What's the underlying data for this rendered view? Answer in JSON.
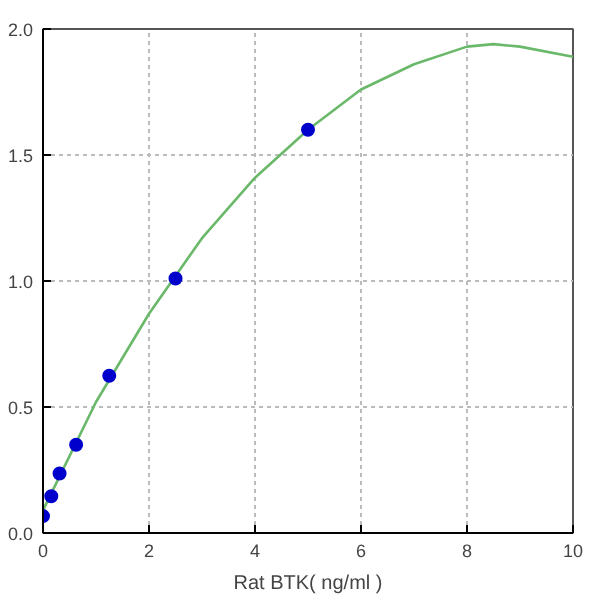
{
  "chart_data": {
    "type": "scatter",
    "xlabel": "Rat BTK( ng/ml )",
    "xlim": [
      0,
      10
    ],
    "ylim": [
      0,
      2.0
    ],
    "xticks": [
      0,
      2,
      4,
      6,
      8,
      10
    ],
    "yticks": [
      {
        "value": 0,
        "label": "0.0"
      },
      {
        "value": 0.5,
        "label": "0.5"
      },
      {
        "value": 1.0,
        "label": "1.0"
      },
      {
        "value": 1.5,
        "label": "1.5"
      },
      {
        "value": 2.0,
        "label": "2.0"
      }
    ],
    "grid": true,
    "line_style": "solid",
    "series": [
      {
        "type": "line",
        "color": "#6ab86a",
        "x": [
          0,
          1,
          2,
          3,
          4,
          5,
          6,
          7,
          8,
          8.5,
          9,
          10
        ],
        "values": [
          0.09,
          0.52,
          0.87,
          1.17,
          1.41,
          1.6,
          1.76,
          1.86,
          1.93,
          1.94,
          1.93,
          1.89
        ]
      },
      {
        "color": "#0000cc",
        "marker": "circle",
        "x": [
          0,
          0.156,
          0.3125,
          0.625,
          1.25,
          2.5,
          5
        ],
        "values": [
          0.067,
          0.146,
          0.236,
          0.35,
          0.624,
          1.01,
          1.6
        ]
      }
    ]
  }
}
